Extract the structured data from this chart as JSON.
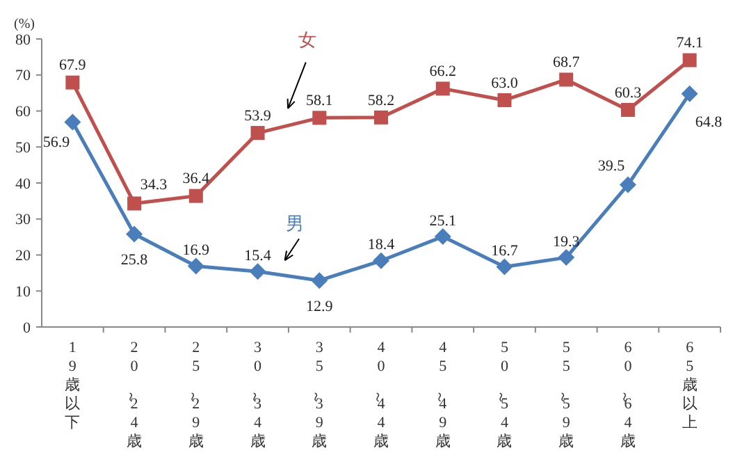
{
  "chart_data": {
    "type": "line",
    "ylabel": "(%)",
    "categories": [
      "19歳以下",
      "20～24歳",
      "25～29歳",
      "30～34歳",
      "35～39歳",
      "40～44歳",
      "45～49歳",
      "50～54歳",
      "55～59歳",
      "60～64歳",
      "65歳以上"
    ],
    "series": [
      {
        "name": "女",
        "color": "#c0504d",
        "marker": "square",
        "values": [
          67.9,
          34.3,
          36.4,
          53.9,
          58.1,
          58.2,
          66.2,
          63.0,
          68.7,
          60.3,
          74.1
        ],
        "value_labels": [
          "67.9",
          "34.3",
          "36.4",
          "53.9",
          "58.1",
          "58.2",
          "66.2",
          "63.0",
          "68.7",
          "60.3",
          "74.1"
        ]
      },
      {
        "name": "男",
        "color": "#4a7ebb",
        "marker": "diamond",
        "values": [
          56.9,
          25.8,
          16.9,
          15.4,
          12.9,
          18.4,
          25.1,
          16.7,
          19.3,
          39.5,
          64.8
        ],
        "value_labels": [
          "56.9",
          "25.8",
          "16.9",
          "15.4",
          "12.9",
          "18.4",
          "25.1",
          "16.7",
          "19.3",
          "39.5",
          "64.8"
        ]
      }
    ],
    "ylim": [
      0,
      80
    ],
    "yticks": [
      0,
      10,
      20,
      30,
      40,
      50,
      60,
      70,
      80
    ],
    "grid": false,
    "data_labels": true,
    "line_style": "solid"
  }
}
